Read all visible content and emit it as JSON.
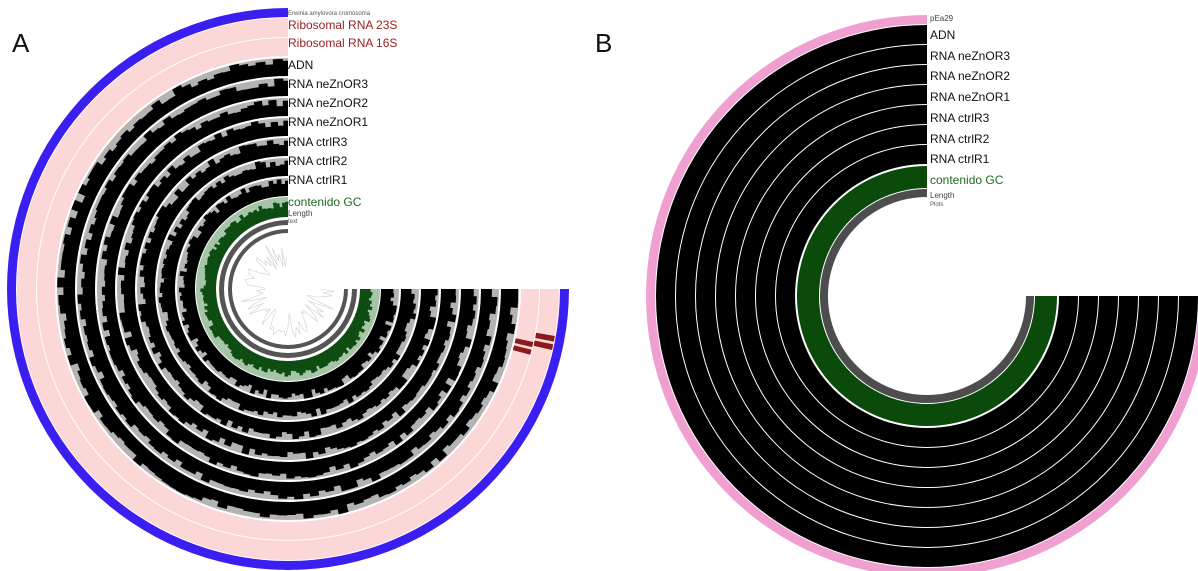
{
  "panels": [
    {
      "letter": "A",
      "title": "Erwinia amylovora cromosoma",
      "colors": {
        "outer_ring": "#3a1ff0",
        "rrna_band": "#fcd7d7",
        "rrna_marker": "#8b1a1a",
        "data_ring": "#000000",
        "data_background": "#b3b3b3",
        "gc_ring": "#0e4d12",
        "gc_background": "#a6c4a6",
        "length_ring": "#555555"
      },
      "tracks": [
        {
          "label": "Ribosomal RNA 23S",
          "style": "red"
        },
        {
          "label": "Ribosomal RNA 16S",
          "style": "red"
        },
        {
          "label": "ADN",
          "style": "normal"
        },
        {
          "label": "RNA neZnOR3",
          "style": "normal"
        },
        {
          "label": "RNA neZnOR2",
          "style": "normal"
        },
        {
          "label": "RNA neZnOR1",
          "style": "normal"
        },
        {
          "label": "RNA ctrlR3",
          "style": "normal"
        },
        {
          "label": "RNA ctrlR2",
          "style": "normal"
        },
        {
          "label": "RNA ctrlR1",
          "style": "normal"
        },
        {
          "label": "contenido GC",
          "style": "green"
        },
        {
          "label": "Length",
          "style": "small"
        },
        {
          "label": "text",
          "style": "tiny"
        }
      ]
    },
    {
      "letter": "B",
      "title": "pEa29",
      "colors": {
        "outer_ring": "#f0a0d0",
        "data_ring": "#000000",
        "gc_ring": "#0a4a0a",
        "length_ring": "#4d4d4d"
      },
      "tracks": [
        {
          "label": "ADN",
          "style": "normal"
        },
        {
          "label": "RNA neZnOR3",
          "style": "normal"
        },
        {
          "label": "RNA neZnOR2",
          "style": "normal"
        },
        {
          "label": "RNA neZnOR1",
          "style": "normal"
        },
        {
          "label": "RNA ctrlR3",
          "style": "normal"
        },
        {
          "label": "RNA ctrlR2",
          "style": "normal"
        },
        {
          "label": "RNA ctrlR1",
          "style": "normal"
        },
        {
          "label": "contenido GC",
          "style": "green"
        },
        {
          "label": "Length",
          "style": "small"
        },
        {
          "label": "Plots",
          "style": "tiny"
        }
      ]
    }
  ]
}
